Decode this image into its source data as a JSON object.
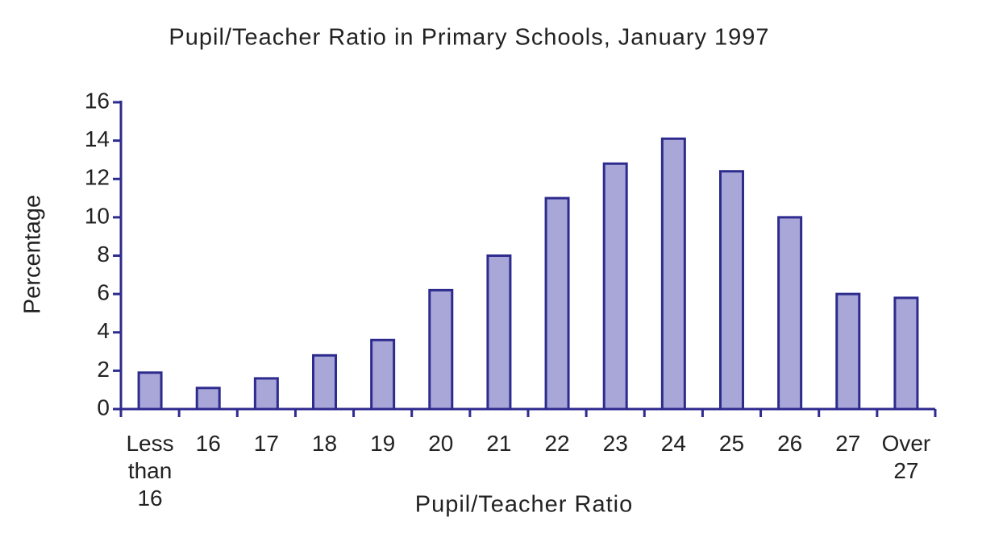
{
  "chart_data": {
    "type": "bar",
    "title": "Pupil/Teacher Ratio in Primary Schools, January 1997",
    "x_label": "Pupil/Teacher Ratio",
    "y_label": "Percentage",
    "categories": [
      "Less than 16",
      "16",
      "17",
      "18",
      "19",
      "20",
      "21",
      "22",
      "23",
      "24",
      "25",
      "26",
      "27",
      "Over 27"
    ],
    "values": [
      1.9,
      1.1,
      1.6,
      2.8,
      3.6,
      6.2,
      8.0,
      11.0,
      12.8,
      14.1,
      12.4,
      10.0,
      6.0,
      5.8
    ],
    "color": "#a9a7d8",
    "edge_color": "#2e2b8f",
    "ylim": [
      0,
      16
    ],
    "yticks": [
      0,
      2,
      4,
      6,
      8,
      10,
      12,
      14,
      16
    ],
    "grid": false
  }
}
